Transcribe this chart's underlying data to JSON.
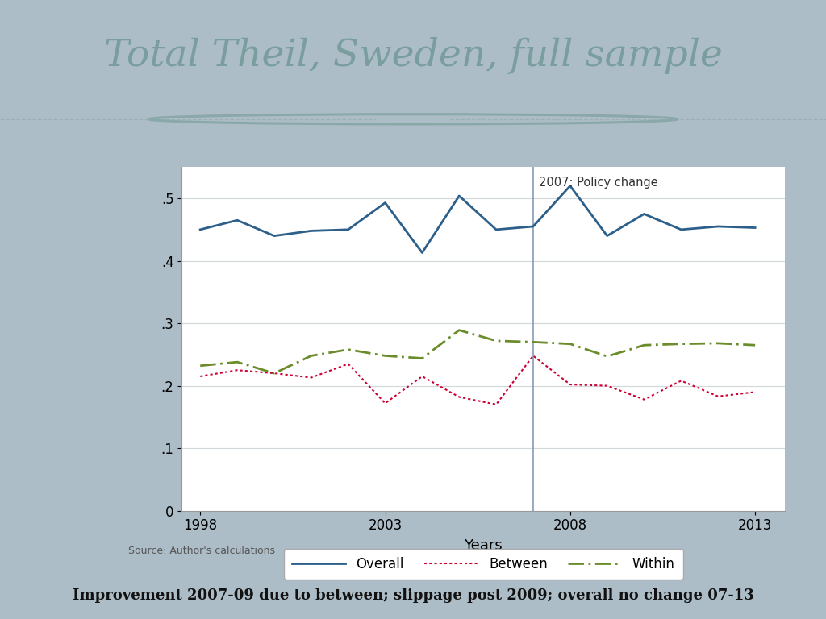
{
  "title": "Total Theil, Sweden, full sample",
  "title_color": "#7a9e9f",
  "bg_outer": "#adbdc7",
  "bg_white": "#ffffff",
  "footer_bg": "#6e8f96",
  "footer_text": "Improvement 2007-09 due to between; slippage post 2009; overall no change 07-13",
  "separator_color": "#9ab0b5",
  "circle_color": "#8aa8aa",
  "xlabel": "Years",
  "annotation": "2007: Policy change",
  "source_text": "Source: Author's calculations",
  "vline_x": 2007,
  "vline_color": "#8899bb",
  "years": [
    1998,
    1999,
    2000,
    2001,
    2002,
    2003,
    2004,
    2005,
    2006,
    2007,
    2008,
    2009,
    2010,
    2011,
    2012,
    2013
  ],
  "overall": [
    0.45,
    0.465,
    0.44,
    0.448,
    0.45,
    0.493,
    0.413,
    0.504,
    0.45,
    0.455,
    0.52,
    0.44,
    0.475,
    0.45,
    0.455,
    0.453
  ],
  "between": [
    0.215,
    0.225,
    0.22,
    0.213,
    0.235,
    0.172,
    0.215,
    0.182,
    0.17,
    0.248,
    0.202,
    0.2,
    0.178,
    0.208,
    0.183,
    0.19
  ],
  "within": [
    0.232,
    0.238,
    0.22,
    0.248,
    0.258,
    0.248,
    0.244,
    0.289,
    0.272,
    0.27,
    0.267,
    0.247,
    0.265,
    0.267,
    0.268,
    0.265
  ],
  "overall_color": "#2c5f8a",
  "between_color": "#cc0033",
  "within_color": "#6b8c2a",
  "ylim": [
    0,
    0.55
  ],
  "yticks": [
    0,
    0.1,
    0.2,
    0.3,
    0.4,
    0.5
  ],
  "ytick_labels": [
    "0",
    ".1",
    ".2",
    ".3",
    ".4",
    ".5"
  ],
  "xlim": [
    1997.5,
    2013.8
  ],
  "xticks": [
    1998,
    2003,
    2008,
    2013
  ],
  "grid_color": "#d0d8dc"
}
